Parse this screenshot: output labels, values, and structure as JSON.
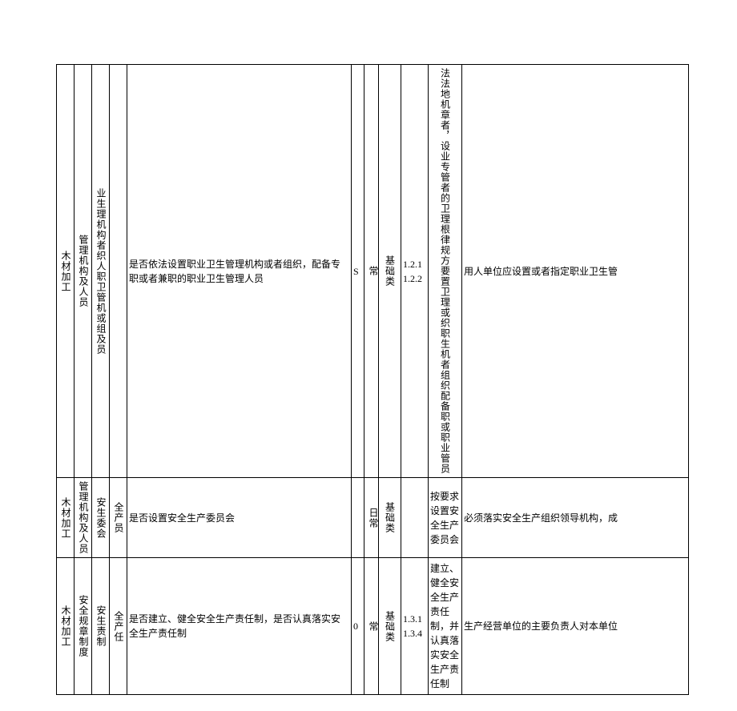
{
  "rows": [
    {
      "c1": "木材加工",
      "c2": "管理机构及人员",
      "c3": "业生理机构者织人职卫管机或组及员",
      "c4": "",
      "c5": "是否依法设置职业卫生管理机构或者组织，配备专职或者兼职的职业卫生管理人员",
      "c6": "S",
      "c7": "常",
      "c8": "基础类",
      "c9": "1.2.1 1.2.2",
      "c10": "法法地机章者，设业专管者的卫理根律规方要置卫理或织职生机者组织配备职或职业管员",
      "c11": "用人单位应设置或者指定职业卫生管"
    },
    {
      "c1": "木材加工",
      "c2": "管理机构及人员",
      "c3": "安生委会",
      "c4": "全产员",
      "c5": "是否设置安全生产委员会",
      "c6": "",
      "c7": "日常",
      "c8": "基础类",
      "c9": "",
      "c10": "按要求设置安全生产委员会",
      "c11": "必须落实安全生产组织领导机构，成"
    },
    {
      "c1": "木材加工",
      "c2": "安全规章制度",
      "c3": "安生责制",
      "c4": "全产任",
      "c5": "是否建立、健全安全生产责任制，是否认真落实安全生产责任制",
      "c6": "0",
      "c7": "常",
      "c8": "基础类",
      "c9": "1.3.1 1.3.4",
      "c10": "建立、健全安全生产责任制，并认真落实安全生产责任制",
      "c11": "生产经营单位的主要负责人对本单位"
    }
  ]
}
